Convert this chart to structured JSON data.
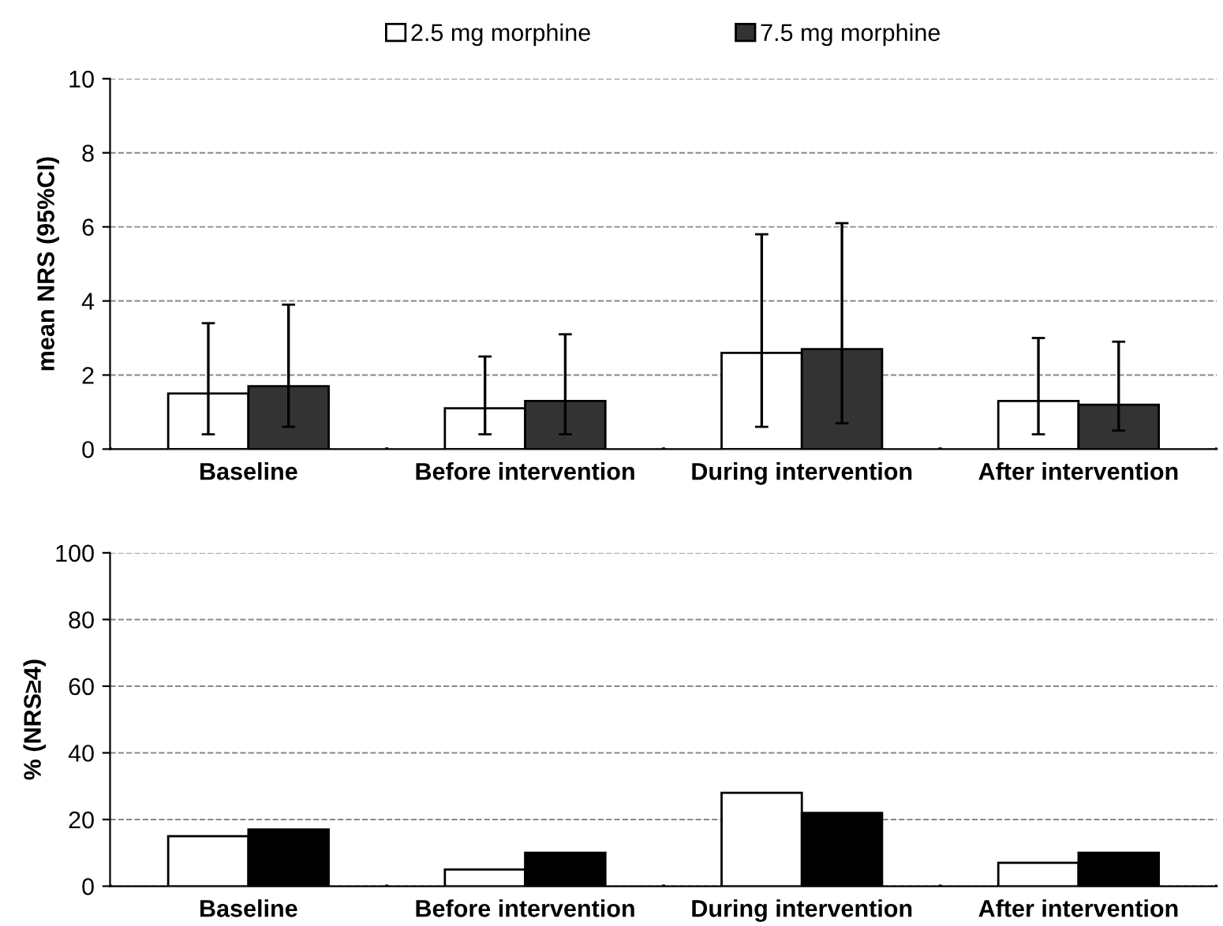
{
  "chart_data": [
    {
      "type": "bar",
      "categories": [
        "Baseline",
        "Before intervention",
        "During intervention",
        "After intervention"
      ],
      "ylabel": "mean NRS (95%CI)",
      "ylim": [
        0,
        10
      ],
      "yticks": [
        0,
        2,
        4,
        6,
        8,
        10
      ],
      "grid": "y",
      "legend": "top",
      "series": [
        {
          "name": "2.5 mg morphine",
          "color": "#ffffff",
          "values": [
            1.5,
            1.1,
            2.6,
            1.3
          ],
          "errors": [
            [
              0.4,
              3.4
            ],
            [
              0.4,
              2.5
            ],
            [
              0.6,
              5.8
            ],
            [
              0.4,
              3.0
            ]
          ]
        },
        {
          "name": "7.5 mg morphine",
          "color": "#333333",
          "values": [
            1.7,
            1.3,
            2.7,
            1.2
          ],
          "errors": [
            [
              0.6,
              3.9
            ],
            [
              0.4,
              3.1
            ],
            [
              0.7,
              6.1
            ],
            [
              0.5,
              2.9
            ]
          ]
        }
      ]
    },
    {
      "type": "bar",
      "categories": [
        "Baseline",
        "Before intervention",
        "During intervention",
        "After intervention"
      ],
      "ylabel": "% (NRS≥4)",
      "ylim": [
        0,
        100
      ],
      "yticks": [
        0,
        20,
        40,
        60,
        80,
        100
      ],
      "grid": "y",
      "series": [
        {
          "color": "#ffffff",
          "values": [
            15,
            5,
            28,
            7
          ]
        },
        {
          "color": "#000000",
          "values": [
            17,
            10,
            22,
            10
          ]
        }
      ]
    }
  ]
}
